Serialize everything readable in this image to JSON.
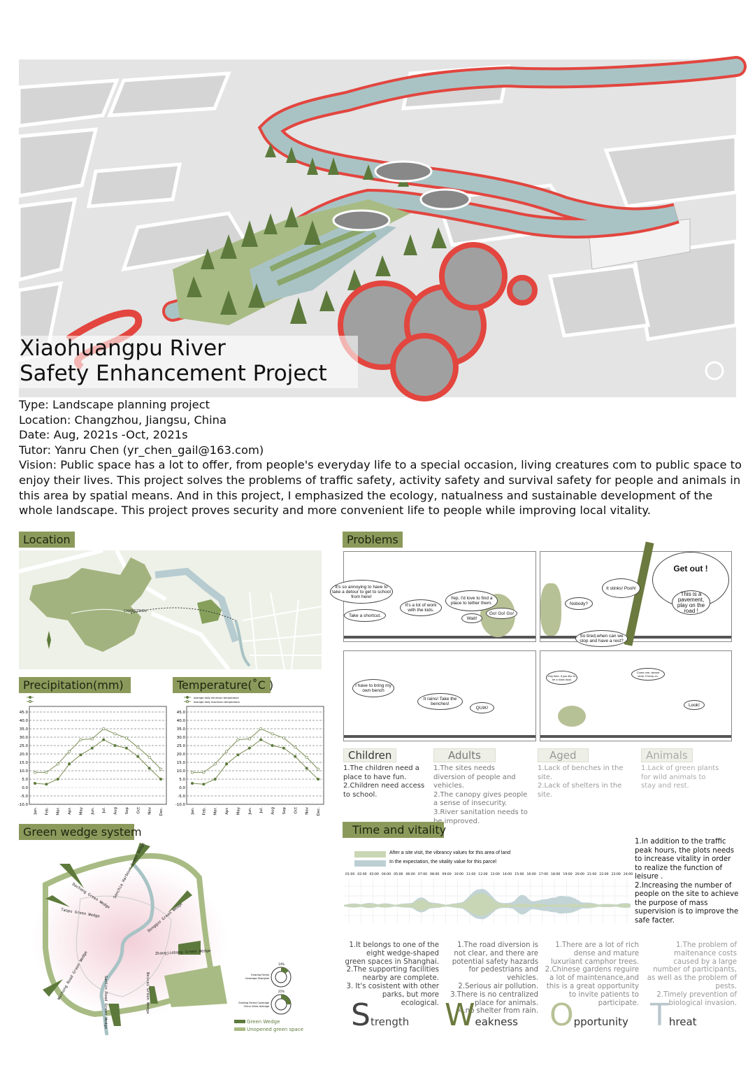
{
  "title": {
    "line1": "Xiaohuangpu River",
    "line2": "Safety Enhancement Project"
  },
  "info": {
    "type": "Type: Landscape planning project",
    "location": "Location: Changzhou, Jiangsu, China",
    "date": "Date: Aug, 2021s -Oct, 2021s",
    "tutor": "Tutor: Yanru Chen (yr_chen_gail@163.com)",
    "vision": "Vision: Public space has a lot to offer, from people's everyday life to a special occasion, living creatures com to public space to enjoy their lives. This project solves the problems of traffic safety, activity safety and survival safety for people and animals in this area by spatial means. And in this project, I emphasized the ecology, natualness and sustainable development of the whole landscape. This project proves security and more convenient life to people while improving local vitality."
  },
  "sections": {
    "location": "Location",
    "precipitation": "Precipitation(mm)",
    "temperature": "Temperature(˚C )",
    "green_wedge": "Green wedge system",
    "problems": "Problems",
    "time_vitality": "Time and vitality"
  },
  "colors": {
    "label_bg": "#8b9a5b",
    "green": "#5d7a3c",
    "light_green": "#a8bb84",
    "river": "#a9c3c5",
    "red_path": "#e2463f"
  },
  "chart_data": [
    {
      "type": "line",
      "title": "Precipitation(mm)",
      "categories": [
        "Jan.",
        "Feb.",
        "Mar.",
        "Apr.",
        "May",
        "Jun.",
        "Jul.",
        "Aug",
        "Sep",
        "Oct",
        "Nov",
        "Dec."
      ],
      "series": [
        {
          "values": [
            2.5,
            2,
            5,
            14,
            19.5,
            23.5,
            28.5,
            25,
            23.5,
            18.5,
            11.5,
            5
          ]
        },
        {
          "values": [
            9,
            9,
            14,
            21.5,
            28.5,
            29,
            35,
            32,
            29.5,
            24,
            18,
            11
          ]
        }
      ],
      "ylim": [
        -10,
        45
      ],
      "yticks": [
        "45.0",
        "40.0",
        "35.0",
        "30.0",
        "25.0",
        "20.0",
        "15.0",
        "10.0",
        "5.0",
        "0.0",
        "-5.0",
        "-10.0"
      ],
      "grid": true,
      "legend": "top-left"
    },
    {
      "type": "line",
      "title": "Temperature(˚C )",
      "categories": [
        "Jan.",
        "Feb.",
        "Mar.",
        "Apr.",
        "May",
        "Jun.",
        "Jul.",
        "Aug",
        "Sep",
        "Oct",
        "Nov",
        "Dec."
      ],
      "series": [
        {
          "name": "Average daily minimum temperature",
          "values": [
            2.5,
            2,
            5,
            14,
            19.5,
            23.5,
            28.5,
            25,
            23.5,
            18.5,
            11.5,
            5
          ]
        },
        {
          "name": "Average daily maximum temperature",
          "values": [
            9,
            9,
            14,
            21.5,
            28.5,
            29,
            35,
            32,
            29.5,
            24,
            18,
            11
          ]
        }
      ],
      "ylim": [
        -10,
        45
      ],
      "yticks": [
        "45.0",
        "40.0",
        "35.0",
        "30.0",
        "25.0",
        "20.0",
        "15.0",
        "10.0",
        "5.0",
        "0.0",
        "-5.0",
        "-10.0"
      ],
      "grid": true,
      "legend": "top-left"
    }
  ],
  "location_map": {
    "marker": "CHANGZHOU"
  },
  "green_wedge": {
    "wedges": [
      "Sanchia Harbour Green Wedge",
      "Dachang Green Wedge",
      "Taopu Green Wedge",
      "Dongguo Green Wedge",
      "Zhangjiabang Green Wedge",
      "Wuzhong Road Green Wedge",
      "Sanlin Road Green Wedge",
      "Beicai Green Wedge"
    ],
    "donuts": [
      {
        "label1": "Existing Forest",
        "label2": "Coverage Shanghai",
        "value": "14%",
        "fraction": 0.14
      },
      {
        "label1": "Existing Forest Coverage",
        "label2": "China Cities Average",
        "value": "25%",
        "fraction": 0.25
      }
    ],
    "legend": [
      "Green Wedge",
      "Unopened green space"
    ]
  },
  "comics": {
    "p1": [
      "It's so annoying to have to take a detour to get to school from here!",
      "Take a shortcut.",
      "It's a lot of work with the kids.",
      "Yep, I'd love to find a place to tether them.",
      "Wait!",
      "Go! Go! Go!"
    ],
    "p2": [
      "Nobody?",
      "It stinks! Pooh!",
      "Get out !",
      "This is a pavement, play on the road !",
      "So tired,when can we stop and have a rest?"
    ],
    "p3": [
      "I have to bring my own bench",
      "It rains! Take the benches!",
      "QUIK!"
    ],
    "p4": [
      "Any time, if you like to be a roast duck",
      "Come one, almost done, if keep on.",
      "Look!"
    ]
  },
  "groups": [
    {
      "title": "Children",
      "text": "1.The children need a place to have fun.\n2.Children need access to school.",
      "color": "#333"
    },
    {
      "title": "Adults",
      "text": "1.The sites needs diversion of people and vehicles.\n2.The canopy gives people a sense of insecurity.\n3.River sanitation needs to be improved.",
      "color": "#777"
    },
    {
      "title": "Aged",
      "text": "1.Lack of benches in the site.\n2.Lack of shelters in the site.",
      "color": "#999"
    },
    {
      "title": "Animals",
      "text": "1.Lack of green plants for wild animals to stay and rest.",
      "color": "#aaa"
    }
  ],
  "vitality": {
    "legend": [
      "After a site visit, the vibrancy values for this area of land",
      "In the expectation, the vitality value for this parcel"
    ],
    "legend_colors": [
      "#c9d6b3",
      "#bccfd3"
    ],
    "times": [
      "01:00",
      "02:00",
      "03:00",
      "04:00",
      "05:00",
      "06:00",
      "07:00",
      "08:00",
      "09:00",
      "10:00",
      "11:00",
      "12:00",
      "13:00",
      "14:00",
      "15:00",
      "16:00",
      "17:00",
      "18:00",
      "19:00",
      "20:00",
      "21:00",
      "22:00",
      "23:00",
      "24:00"
    ],
    "note": "1.In addition to the traffic peak hours, the plots needs to increase vitality in order to realize the function of leisure .\n2.Increasing the number of people on the site to achieve the purpose of mass supervision is to improve the safe facter."
  },
  "swot": [
    {
      "letter": "S",
      "rest": "trength",
      "text": "1.It belongs to one of the eight wedge-shaped green spaces in Shanghai.\n2.The supporting facilities nearby are complete.\n3. It's cosistent with other parks, but more ecological.",
      "color": "#444"
    },
    {
      "letter": "W",
      "rest": "eakness",
      "text": "1.The road diversion is not clear, and there are potential safety hazards for pedestrians and vehicles.\n2.Serious air pollution.\n3.There is no centralized place for animals.\n4.no shelter from rain.",
      "color": "#666"
    },
    {
      "letter": "O",
      "rest": "pportunity",
      "text": "1.There are a lot of rich dense and mature luxuriant camphor trees.\n2.Chinese gardens reguire a lot of maintenance,and this is a great opportunity to invite patients to participate.",
      "color": "#888"
    },
    {
      "letter": "T",
      "rest": "hreat",
      "text": "1.The problem of maitenance  costs caused by a large number of participants, as well as the problem of pests.\n2.Timely prevention of biological invasion.",
      "color": "#999"
    }
  ]
}
